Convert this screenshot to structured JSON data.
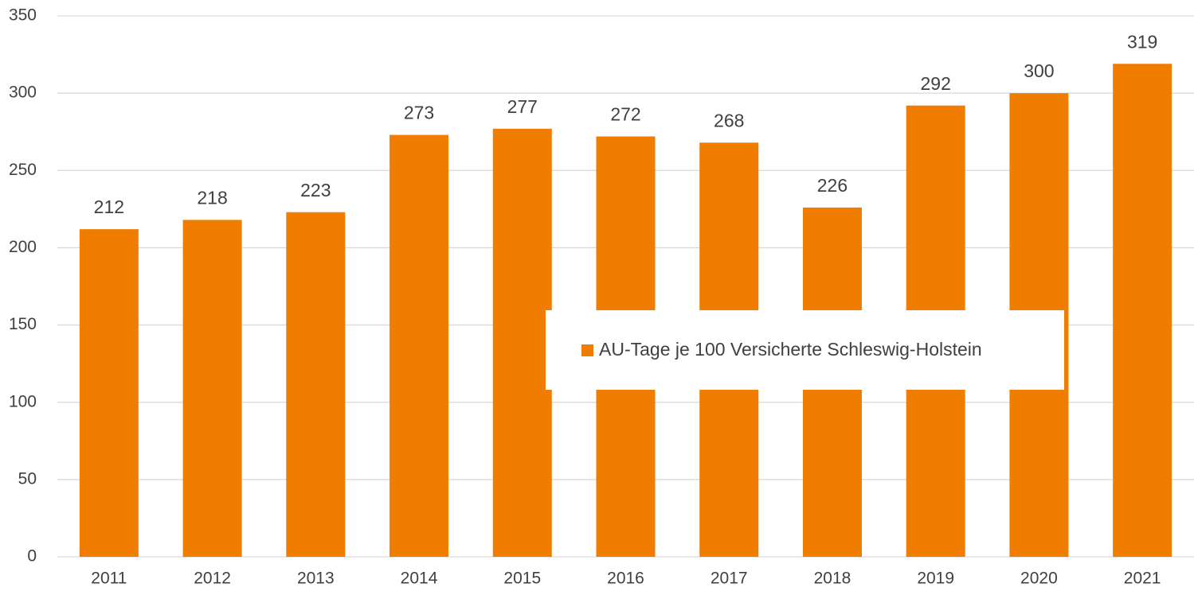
{
  "chart_data": {
    "type": "bar",
    "categories": [
      "2011",
      "2012",
      "2013",
      "2014",
      "2015",
      "2016",
      "2017",
      "2018",
      "2019",
      "2020",
      "2021"
    ],
    "series": [
      {
        "name": "AU-Tage je 100 Versicherte Schleswig-Holstein",
        "color": "#f07d00",
        "values": [
          212,
          218,
          223,
          273,
          277,
          272,
          268,
          226,
          292,
          300,
          319
        ]
      }
    ],
    "ylim": [
      0,
      350
    ],
    "yticks": [
      0,
      50,
      100,
      150,
      200,
      250,
      300,
      350
    ],
    "grid": true,
    "data_labels": true,
    "legend": "center"
  }
}
